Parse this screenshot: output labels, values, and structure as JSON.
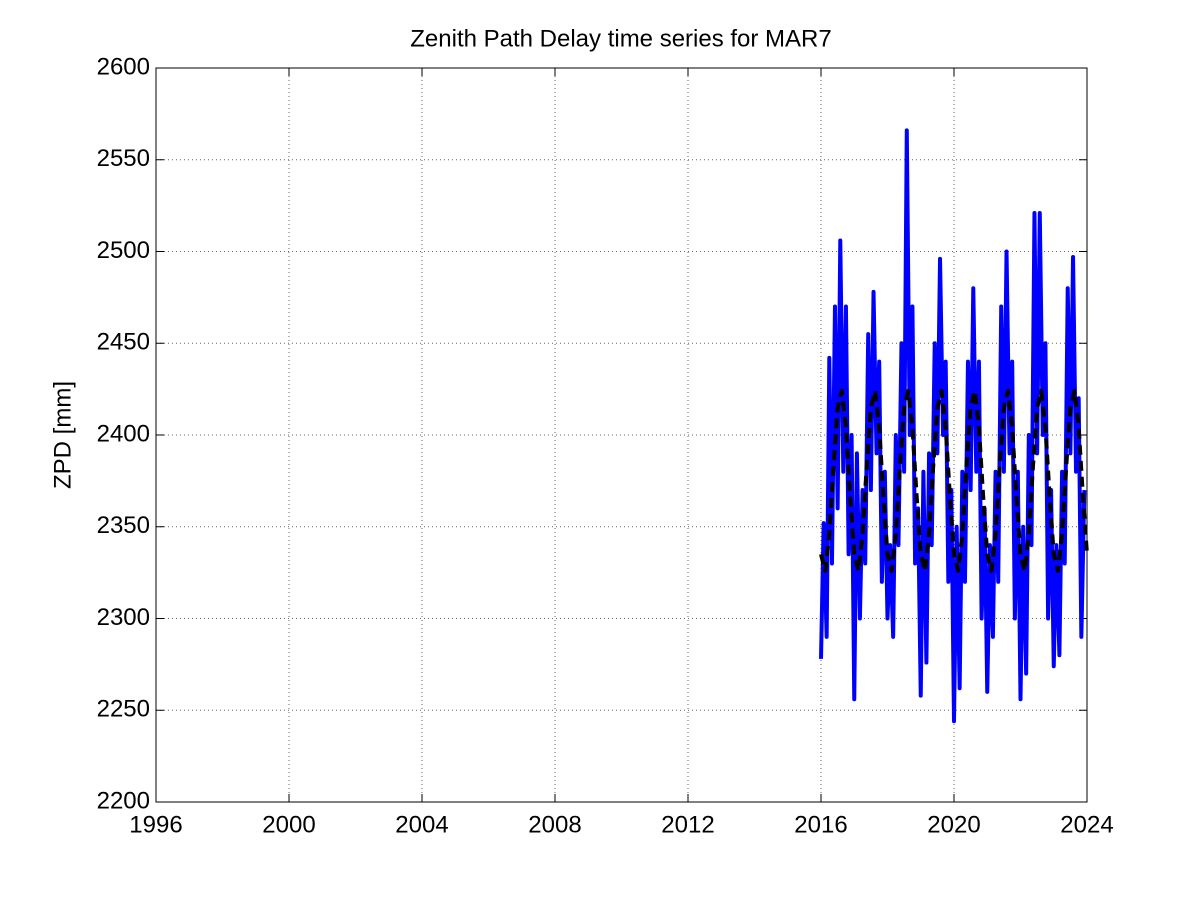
{
  "chart_data": {
    "type": "line",
    "title": "Zenith Path Delay time series for MAR7",
    "y_label": "ZPD [mm]",
    "xlim": [
      1996,
      2024
    ],
    "xticks": [
      1996,
      2000,
      2004,
      2008,
      2012,
      2016,
      2020,
      2024
    ],
    "ylim": [
      2200,
      2600
    ],
    "yticks": [
      2200,
      2250,
      2300,
      2350,
      2400,
      2450,
      2500,
      2550,
      2600
    ],
    "grid": true,
    "series": [
      {
        "color": "#0000ff",
        "x": [
          2016,
          2016.08,
          2016.17,
          2016.25,
          2016.33,
          2016.42,
          2016.5,
          2016.58,
          2016.67,
          2016.75,
          2016.83,
          2016.92,
          2017,
          2017.08,
          2017.17,
          2017.25,
          2017.33,
          2017.42,
          2017.5,
          2017.58,
          2017.67,
          2017.75,
          2017.83,
          2017.92,
          2018,
          2018.08,
          2018.17,
          2018.25,
          2018.33,
          2018.42,
          2018.5,
          2018.58,
          2018.67,
          2018.75,
          2018.83,
          2018.92,
          2019,
          2019.08,
          2019.17,
          2019.25,
          2019.33,
          2019.42,
          2019.5,
          2019.58,
          2019.67,
          2019.75,
          2019.83,
          2019.92,
          2020,
          2020.08,
          2020.17,
          2020.25,
          2020.33,
          2020.42,
          2020.5,
          2020.58,
          2020.67,
          2020.75,
          2020.83,
          2020.92,
          2021,
          2021.08,
          2021.17,
          2021.25,
          2021.33,
          2021.42,
          2021.5,
          2021.58,
          2021.67,
          2021.75,
          2021.83,
          2021.92,
          2022,
          2022.08,
          2022.17,
          2022.25,
          2022.33,
          2022.42,
          2022.5,
          2022.58,
          2022.67,
          2022.75,
          2022.83,
          2022.92,
          2023,
          2023.08,
          2023.17,
          2023.25,
          2023.33,
          2023.42,
          2023.5,
          2023.58,
          2023.67,
          2023.75,
          2023.83,
          2023.92
        ],
        "values": [
          2278,
          2352,
          2290,
          2442,
          2330,
          2470,
          2360,
          2506,
          2380,
          2470,
          2335,
          2400,
          2256,
          2390,
          2300,
          2370,
          2330,
          2455,
          2370,
          2478,
          2390,
          2440,
          2320,
          2380,
          2300,
          2340,
          2290,
          2400,
          2340,
          2450,
          2380,
          2566,
          2400,
          2470,
          2330,
          2360,
          2258,
          2380,
          2276,
          2390,
          2340,
          2450,
          2390,
          2496,
          2400,
          2440,
          2320,
          2370,
          2244,
          2350,
          2262,
          2380,
          2320,
          2440,
          2370,
          2480,
          2380,
          2440,
          2300,
          2360,
          2260,
          2340,
          2290,
          2380,
          2320,
          2470,
          2380,
          2500,
          2390,
          2440,
          2300,
          2380,
          2256,
          2350,
          2270,
          2400,
          2340,
          2521,
          2390,
          2521,
          2400,
          2450,
          2300,
          2370,
          2274,
          2340,
          2280,
          2380,
          2330,
          2480,
          2390,
          2497,
          2380,
          2420,
          2290,
          2370
        ]
      },
      {
        "color": "#000000",
        "dashed": true,
        "x": [
          2016,
          2016.125,
          2016.25,
          2016.375,
          2016.5,
          2016.625,
          2016.75,
          2016.875,
          2017,
          2017.125,
          2017.25,
          2017.375,
          2017.5,
          2017.625,
          2017.75,
          2017.875,
          2018,
          2018.125,
          2018.25,
          2018.375,
          2018.5,
          2018.625,
          2018.75,
          2018.875,
          2019,
          2019.125,
          2019.25,
          2019.375,
          2019.5,
          2019.625,
          2019.75,
          2019.875,
          2020,
          2020.125,
          2020.25,
          2020.375,
          2020.5,
          2020.625,
          2020.75,
          2020.875,
          2021,
          2021.125,
          2021.25,
          2021.375,
          2021.5,
          2021.625,
          2021.75,
          2021.875,
          2022,
          2022.125,
          2022.25,
          2022.375,
          2022.5,
          2022.625,
          2022.75,
          2022.875,
          2023,
          2023.125,
          2023.25,
          2023.375,
          2023.5,
          2023.625,
          2023.75,
          2023.875,
          2024
        ],
        "values": [
          2335,
          2326,
          2346,
          2383,
          2415,
          2424,
          2404,
          2367,
          2335,
          2326,
          2346,
          2383,
          2415,
          2424,
          2404,
          2367,
          2335,
          2326,
          2346,
          2383,
          2415,
          2424,
          2404,
          2367,
          2335,
          2326,
          2346,
          2383,
          2415,
          2424,
          2404,
          2367,
          2335,
          2326,
          2346,
          2383,
          2415,
          2424,
          2404,
          2367,
          2335,
          2326,
          2346,
          2383,
          2415,
          2424,
          2404,
          2367,
          2335,
          2326,
          2346,
          2383,
          2415,
          2424,
          2404,
          2367,
          2335,
          2326,
          2346,
          2383,
          2415,
          2424,
          2404,
          2367,
          2335
        ]
      }
    ]
  }
}
